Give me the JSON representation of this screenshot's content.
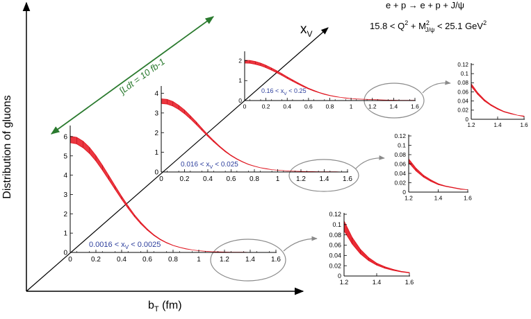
{
  "figure": {
    "process": "e + p → e + p + J/ψ",
    "kinematics": {
      "lo": "15.8 < Q",
      "sq": "2",
      "plus": " + M",
      "sq2": "2",
      "sub": "J/ψ",
      "hi": " < 25.1 GeV",
      "sq3": "2"
    },
    "y_axis_label": "Distribution of gluons",
    "x_axis_label": {
      "main": "b",
      "sub": "T",
      "unit": " (fm)"
    },
    "diag_axis_label": {
      "main": "x",
      "sub": "V"
    },
    "luminosity_label": "∫Ldt = 10 fb-1"
  },
  "colors": {
    "curve": "#e0141e",
    "band": "#e8141e",
    "bin_label": "#2c3e9c",
    "arrow": "#2a7a2e",
    "ellipse": "#8a8a8a",
    "axis": "#000000"
  },
  "chart_data": [
    {
      "type": "area",
      "bin": {
        "lo": "0.0016 < x",
        "sub": "V",
        "hi": " < 0.0025"
      },
      "xlim": [
        0,
        1.6
      ],
      "ylim": [
        0,
        6.5
      ],
      "xticks": [
        "0",
        "0.2",
        "0.4",
        "0.6",
        "0.8",
        "1",
        "1.2",
        "1.4",
        "1.6"
      ],
      "yticks": [
        "0",
        "1",
        "2",
        "3",
        "4",
        "5",
        "6"
      ],
      "x": [
        0,
        0.05,
        0.1,
        0.15,
        0.2,
        0.25,
        0.3,
        0.35,
        0.4,
        0.45,
        0.5,
        0.55,
        0.6,
        0.65,
        0.7,
        0.75,
        0.8,
        0.85,
        0.9,
        0.95,
        1.0,
        1.05,
        1.1,
        1.15,
        1.2,
        1.25,
        1.3,
        1.35,
        1.4,
        1.45,
        1.5,
        1.55,
        1.6
      ],
      "series": [
        {
          "band": "lower",
          "values": [
            5.68,
            5.62,
            5.42,
            5.12,
            4.73,
            4.26,
            3.76,
            3.25,
            2.75,
            2.28,
            1.85,
            1.47,
            1.15,
            0.88,
            0.66,
            0.49,
            0.36,
            0.26,
            0.18,
            0.13,
            0.09,
            0.06,
            0.04,
            0.03,
            0.02,
            0.01,
            0.01,
            0.01,
            0,
            0,
            0,
            0,
            0
          ]
        },
        {
          "band": "upper",
          "values": [
            6.02,
            5.96,
            5.76,
            5.44,
            5.02,
            4.52,
            3.99,
            3.44,
            2.91,
            2.41,
            1.95,
            1.55,
            1.21,
            0.92,
            0.69,
            0.51,
            0.37,
            0.27,
            0.19,
            0.13,
            0.09,
            0.06,
            0.04,
            0.03,
            0.02,
            0.01,
            0.01,
            0.01,
            0,
            0,
            0,
            0,
            0
          ]
        }
      ]
    },
    {
      "type": "area",
      "bin": {
        "lo": "0.016 < x",
        "sub": "V",
        "hi": " < 0.025"
      },
      "xlim": [
        0,
        1.6
      ],
      "ylim": [
        0,
        4.3
      ],
      "xticks": [
        "0",
        "0.2",
        "0.4",
        "0.6",
        "0.8",
        "1",
        "1.2",
        "1.4",
        "1.6"
      ],
      "yticks": [
        "0",
        "1",
        "2",
        "3",
        "4"
      ],
      "x": [
        0,
        0.05,
        0.1,
        0.15,
        0.2,
        0.25,
        0.3,
        0.35,
        0.4,
        0.45,
        0.5,
        0.55,
        0.6,
        0.65,
        0.7,
        0.75,
        0.8,
        0.85,
        0.9,
        0.95,
        1.0,
        1.05,
        1.1,
        1.15,
        1.2,
        1.25,
        1.3,
        1.35,
        1.4,
        1.45,
        1.5,
        1.55,
        1.6
      ],
      "series": [
        {
          "band": "lower",
          "values": [
            3.48,
            3.45,
            3.35,
            3.18,
            2.96,
            2.7,
            2.41,
            2.11,
            1.81,
            1.53,
            1.27,
            1.03,
            0.82,
            0.65,
            0.5,
            0.38,
            0.29,
            0.22,
            0.16,
            0.12,
            0.09,
            0.07,
            0.05,
            0.04,
            0.03,
            0.02,
            0.02,
            0.01,
            0.01,
            0.01,
            0.01,
            0,
            0
          ]
        },
        {
          "band": "upper",
          "values": [
            3.72,
            3.69,
            3.58,
            3.39,
            3.15,
            2.86,
            2.55,
            2.22,
            1.9,
            1.6,
            1.32,
            1.07,
            0.85,
            0.67,
            0.52,
            0.39,
            0.3,
            0.22,
            0.17,
            0.12,
            0.09,
            0.07,
            0.05,
            0.04,
            0.03,
            0.02,
            0.02,
            0.01,
            0.01,
            0.01,
            0.01,
            0,
            0
          ]
        }
      ]
    },
    {
      "type": "area",
      "bin": {
        "lo": "0.16 < x",
        "sub": "V",
        "hi": " < 0.25"
      },
      "xlim": [
        0,
        1.6
      ],
      "ylim": [
        0,
        2.4
      ],
      "xticks": [
        "0",
        "0.2",
        "0.4",
        "0.6",
        "0.8",
        "1",
        "1.2",
        "1.4",
        "1.6"
      ],
      "yticks": [
        "0",
        "1",
        "2"
      ],
      "x": [
        0,
        0.05,
        0.1,
        0.15,
        0.2,
        0.25,
        0.3,
        0.35,
        0.4,
        0.45,
        0.5,
        0.55,
        0.6,
        0.65,
        0.7,
        0.75,
        0.8,
        0.85,
        0.9,
        0.95,
        1.0,
        1.05,
        1.1,
        1.15,
        1.2,
        1.25,
        1.3,
        1.35,
        1.4,
        1.45,
        1.5,
        1.55,
        1.6
      ],
      "series": [
        {
          "band": "lower",
          "values": [
            1.88,
            1.87,
            1.82,
            1.75,
            1.65,
            1.53,
            1.4,
            1.26,
            1.11,
            0.97,
            0.83,
            0.7,
            0.58,
            0.48,
            0.39,
            0.31,
            0.25,
            0.2,
            0.16,
            0.12,
            0.1,
            0.08,
            0.07,
            0.06,
            0.05,
            0.04,
            0.03,
            0.02,
            0.02,
            0.01,
            0.01,
            0.01,
            0.01
          ]
        },
        {
          "band": "upper",
          "values": [
            2.02,
            2.01,
            1.96,
            1.88,
            1.77,
            1.64,
            1.5,
            1.35,
            1.19,
            1.04,
            0.89,
            0.75,
            0.62,
            0.51,
            0.41,
            0.33,
            0.26,
            0.21,
            0.16,
            0.13,
            0.1,
            0.08,
            0.07,
            0.06,
            0.05,
            0.04,
            0.03,
            0.02,
            0.02,
            0.01,
            0.01,
            0.01,
            0.01
          ]
        }
      ]
    },
    {
      "type": "area",
      "inset_of": 0,
      "xlim": [
        1.2,
        1.6
      ],
      "ylim": [
        0,
        0.12
      ],
      "xticks": [
        "1.2",
        "1.4",
        "1.6"
      ],
      "yticks": [
        "0",
        "0.02",
        "0.04",
        "0.06",
        "0.08",
        "0.1",
        "0.12"
      ],
      "x": [
        1.2,
        1.25,
        1.3,
        1.35,
        1.4,
        1.45,
        1.5,
        1.55,
        1.6
      ],
      "series": [
        {
          "band": "lower",
          "values": [
            0.088,
            0.062,
            0.043,
            0.03,
            0.021,
            0.015,
            0.011,
            0.008,
            0.006
          ]
        },
        {
          "band": "upper",
          "values": [
            0.107,
            0.075,
            0.052,
            0.036,
            0.025,
            0.018,
            0.013,
            0.009,
            0.007
          ]
        }
      ]
    },
    {
      "type": "area",
      "inset_of": 1,
      "xlim": [
        1.2,
        1.6
      ],
      "ylim": [
        0,
        0.12
      ],
      "xticks": [
        "1.2",
        "1.4",
        "1.6"
      ],
      "yticks": [
        "0",
        "0.02",
        "0.04",
        "0.06",
        "0.08",
        "0.1",
        "0.12"
      ],
      "x": [
        1.2,
        1.25,
        1.3,
        1.35,
        1.4,
        1.45,
        1.5,
        1.55,
        1.6
      ],
      "series": [
        {
          "band": "lower",
          "values": [
            0.063,
            0.045,
            0.032,
            0.023,
            0.016,
            0.012,
            0.009,
            0.006,
            0.005
          ]
        },
        {
          "band": "upper",
          "values": [
            0.071,
            0.051,
            0.036,
            0.026,
            0.018,
            0.013,
            0.01,
            0.007,
            0.005
          ]
        }
      ]
    },
    {
      "type": "area",
      "inset_of": 2,
      "xlim": [
        1.2,
        1.6
      ],
      "ylim": [
        0,
        0.12
      ],
      "xticks": [
        "1.2",
        "1.4",
        "1.6"
      ],
      "yticks": [
        "0",
        "0.02",
        "0.04",
        "0.06",
        "0.08",
        "0.1",
        "0.12"
      ],
      "x": [
        1.2,
        1.25,
        1.3,
        1.35,
        1.4,
        1.45,
        1.5,
        1.55,
        1.6
      ],
      "series": [
        {
          "band": "lower",
          "values": [
            0.072,
            0.054,
            0.04,
            0.03,
            0.022,
            0.016,
            0.012,
            0.009,
            0.006
          ]
        },
        {
          "band": "upper",
          "values": [
            0.078,
            0.058,
            0.043,
            0.032,
            0.024,
            0.017,
            0.013,
            0.009,
            0.007
          ]
        }
      ]
    }
  ]
}
